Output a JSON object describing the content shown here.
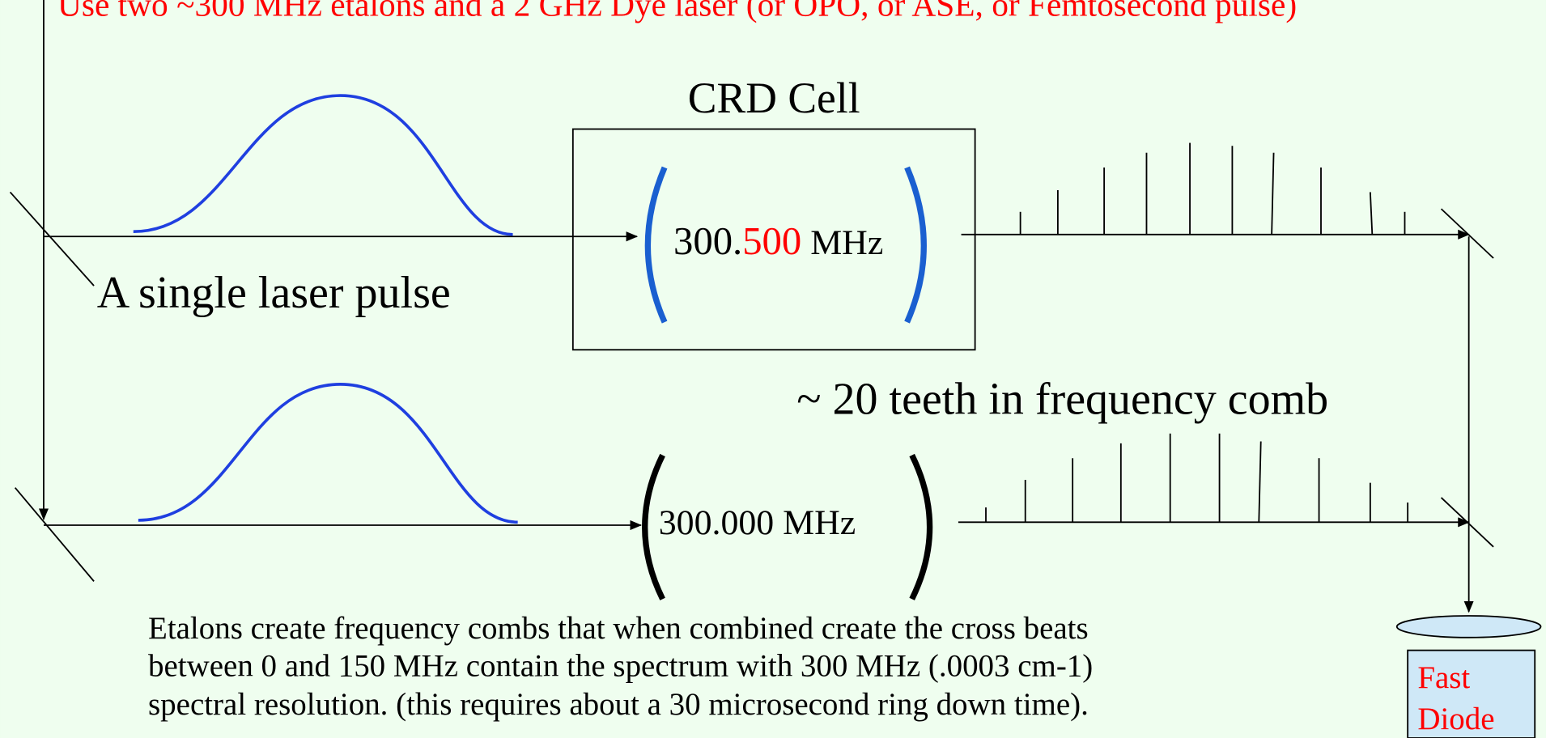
{
  "header": {
    "note": "Use two ~300 MHz etalons and a 2 GHz Dye laser (or OPO, or ASE, or Femtosecond pulse)"
  },
  "labels": {
    "cell": "CRD Cell",
    "pulse": "A single laser pulse",
    "comb": "~ 20 teeth in frequency comb"
  },
  "etalons": {
    "upper": {
      "integer": "300.",
      "fraction": "500",
      "unit": " MHz"
    },
    "lower": "300.000 MHz"
  },
  "description": [
    "Etalons create frequency combs that when combined create the cross beats",
    "between 0 and 150 MHz contain the spectrum with 300 MHz (.0003 cm-1)",
    "spectral resolution. (this requires about a 30 microsecond ring down time)."
  ],
  "detector": [
    "Fast",
    "Diode"
  ]
}
